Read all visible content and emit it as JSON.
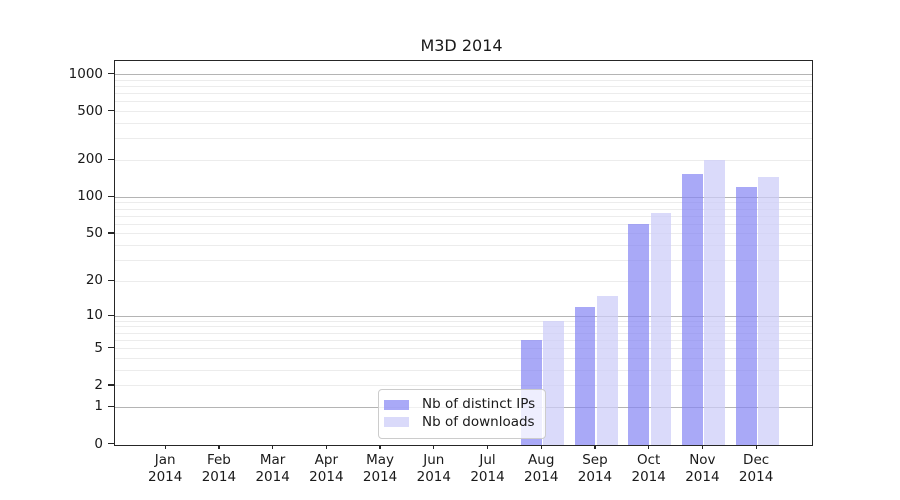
{
  "chart_data": {
    "type": "bar",
    "title": "M3D 2014",
    "categories": [
      "Jan 2014",
      "Feb 2014",
      "Mar 2014",
      "Apr 2014",
      "May 2014",
      "Jun 2014",
      "Jul 2014",
      "Aug 2014",
      "Sep 2014",
      "Oct 2014",
      "Nov 2014",
      "Dec 2014"
    ],
    "series": [
      {
        "name": "Nb of distinct IPs",
        "color": "#8485f4b3",
        "values": [
          0,
          0,
          0,
          0,
          0,
          0,
          0,
          6,
          12,
          60,
          155,
          122
        ]
      },
      {
        "name": "Nb of downloads",
        "color": "#cdcdf8bb",
        "values": [
          0,
          0,
          0,
          0,
          0,
          0,
          0,
          9,
          15,
          75,
          200,
          148
        ]
      }
    ],
    "xlabel": "",
    "ylabel": "",
    "yscale": "log1p",
    "ylim": [
      0,
      1287
    ],
    "y_ticks": [
      0,
      1,
      2,
      5,
      10,
      20,
      50,
      100,
      200,
      500,
      1000
    ],
    "y_major_gridlines": [
      1,
      10,
      100,
      1000
    ],
    "grid": true,
    "legend_position": "lower center"
  },
  "colors": {
    "bar_distinct_ips": "#8485f4b3",
    "bar_downloads": "#cdcdf8bb",
    "grid_major": "#b4b4b4",
    "grid_minor": "#ececec",
    "axis": "#262626",
    "text": "#1a1a1a",
    "legend_border": "#cccccc",
    "background": "#ffffff"
  }
}
